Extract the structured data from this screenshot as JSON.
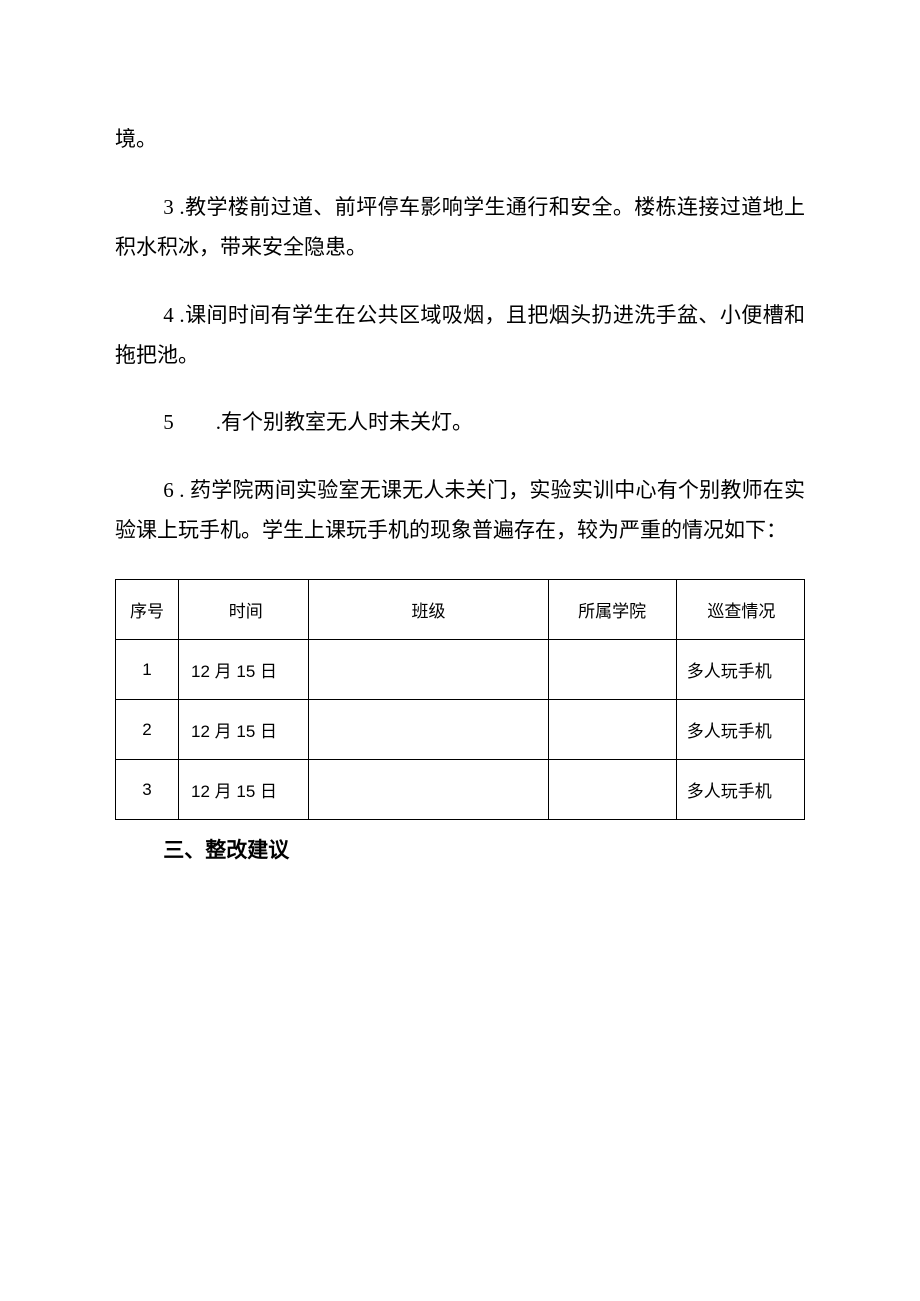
{
  "paragraphs": {
    "p1": "境。",
    "p2": "3 .教学楼前过道、前坪停车影响学生通行和安全。楼栋连接过道地上积水积冰，带来安全隐患。",
    "p3": "4 .课间时间有学生在公共区域吸烟，且把烟头扔进洗手盆、小便槽和拖把池。",
    "p4_num": "5",
    "p4_text": ".有个别教室无人时未关灯。",
    "p5": "6 . 药学院两间实验室无课无人未关门，实验实训中心有个别教师在实验课上玩手机。学生上课玩手机的现象普遍存在，较为严重的情况如下："
  },
  "table": {
    "headers": {
      "seq": "序号",
      "time": "时间",
      "class": "班级",
      "college": "所属学院",
      "status": "巡查情况"
    },
    "rows": [
      {
        "seq": "1",
        "time": "12 月 15 日",
        "class": "",
        "college": "",
        "status": "多人玩手机"
      },
      {
        "seq": "2",
        "time": "12 月 15 日",
        "class": "",
        "college": "",
        "status": "多人玩手机"
      },
      {
        "seq": "3",
        "time": "12 月 15 日",
        "class": "",
        "college": "",
        "status": "多人玩手机"
      }
    ]
  },
  "section_title": "三、整改建议"
}
